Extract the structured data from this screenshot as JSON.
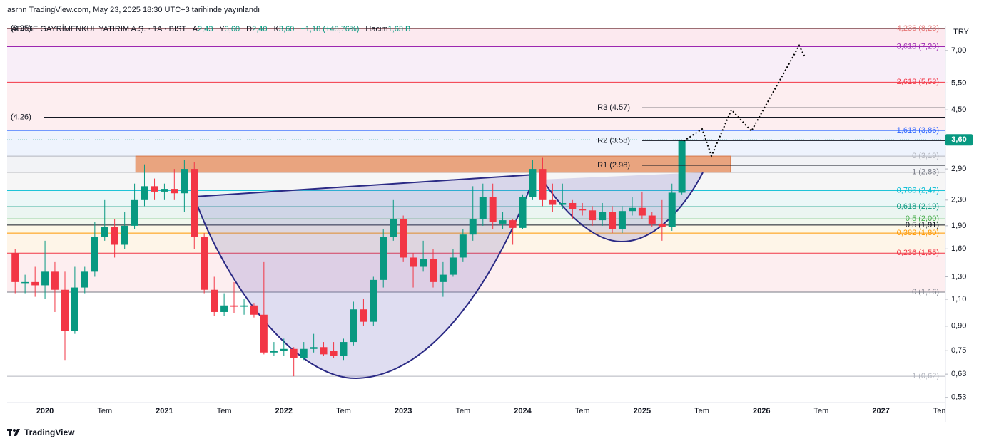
{
  "header": {
    "published": "asrnn TradingView.com, May 23, 2025 18:30 UTC+3 tarihinde yayınlandı"
  },
  "legend": {
    "symbol": "ADESE GAYRİMENKUL YATIRIM A.Ş. · 1A · BIST",
    "fields": [
      {
        "key": "A",
        "value": "2,43"
      },
      {
        "key": "Y",
        "value": "3,60"
      },
      {
        "key": "D",
        "value": "2,40"
      },
      {
        "key": "K",
        "value": "3,60"
      }
    ],
    "change": "+1,18 (+48,76%)",
    "volume_key": "Hacim",
    "volume": "1,63 B"
  },
  "footer": {
    "brand": "TradingView"
  },
  "chart_data": {
    "type": "candlestick",
    "currency": "TRY",
    "log_scale": true,
    "up_color": "#089981",
    "down_color": "#f23645",
    "xlim": [
      2019.683,
      2027.54
    ],
    "xticks": [
      {
        "value": 2020,
        "label": "2020"
      },
      {
        "value": 2020.5,
        "label": "Tem"
      },
      {
        "value": 2021,
        "label": "2021"
      },
      {
        "value": 2021.5,
        "label": "Tem"
      },
      {
        "value": 2022,
        "label": "2022"
      },
      {
        "value": 2022.5,
        "label": "Tem"
      },
      {
        "value": 2023,
        "label": "2023"
      },
      {
        "value": 2023.5,
        "label": "Tem"
      },
      {
        "value": 2024,
        "label": "2024"
      },
      {
        "value": 2024.5,
        "label": "Tem"
      },
      {
        "value": 2025,
        "label": "2025"
      },
      {
        "value": 2025.5,
        "label": "Tem"
      },
      {
        "value": 2026,
        "label": "2026"
      },
      {
        "value": 2026.5,
        "label": "Tem"
      },
      {
        "value": 2027,
        "label": "2027"
      },
      {
        "value": 2027.5,
        "label": "Tem"
      }
    ],
    "ylim": [
      0.51,
      8.42
    ],
    "yticks": [
      {
        "value": 7,
        "label": "7,00"
      },
      {
        "value": 5.5,
        "label": "5,50"
      },
      {
        "value": 4.5,
        "label": "4,50"
      },
      {
        "value": 2.9,
        "label": "2,90"
      },
      {
        "value": 2.3,
        "label": "2,30"
      },
      {
        "value": 1.9,
        "label": "1,90"
      },
      {
        "value": 1.6,
        "label": "1,60"
      },
      {
        "value": 1.3,
        "label": "1,30"
      },
      {
        "value": 1.1,
        "label": "1,10"
      },
      {
        "value": 0.9,
        "label": "0,90"
      },
      {
        "value": 0.75,
        "label": "0,75"
      },
      {
        "value": 0.63,
        "label": "0,63"
      },
      {
        "value": 0.53,
        "label": "0,53"
      }
    ],
    "x": [
      2019.75,
      2019.833,
      2019.917,
      2020,
      2020.083,
      2020.167,
      2020.25,
      2020.333,
      2020.417,
      2020.5,
      2020.583,
      2020.667,
      2020.75,
      2020.833,
      2020.917,
      2021,
      2021.083,
      2021.167,
      2021.25,
      2021.333,
      2021.417,
      2021.5,
      2021.583,
      2021.667,
      2021.75,
      2021.833,
      2021.917,
      2022,
      2022.083,
      2022.167,
      2022.25,
      2022.333,
      2022.417,
      2022.5,
      2022.583,
      2022.667,
      2022.75,
      2022.833,
      2022.917,
      2023,
      2023.083,
      2023.167,
      2023.25,
      2023.333,
      2023.417,
      2023.5,
      2023.583,
      2023.667,
      2023.75,
      2023.833,
      2023.917,
      2024,
      2024.083,
      2024.167,
      2024.25,
      2024.333,
      2024.417,
      2024.5,
      2024.583,
      2024.667,
      2024.75,
      2024.833,
      2024.917,
      2025,
      2025.083,
      2025.167,
      2025.25,
      2025.333
    ],
    "open": [
      1.55,
      1.24,
      1.25,
      1.22,
      1.35,
      1.18,
      0.87,
      1.2,
      1.35,
      1.75,
      1.88,
      1.65,
      1.9,
      2.3,
      2.55,
      2.45,
      2.5,
      2.42,
      2.9,
      1.75,
      1.18,
      1.0,
      1.05,
      1.04,
      1.05,
      0.98,
      0.74,
      0.75,
      0.76,
      0.71,
      0.76,
      0.77,
      0.75,
      0.72,
      0.8,
      1.02,
      0.93,
      1.27,
      1.75,
      2.0,
      1.5,
      1.4,
      1.48,
      1.25,
      1.32,
      1.5,
      1.78,
      2.0,
      2.35,
      1.93,
      1.98,
      1.87,
      2.35,
      2.9,
      2.3,
      2.22,
      2.25,
      2.15,
      2.13,
      1.98,
      2.1,
      1.85,
      2.12,
      2.17,
      2.05,
      1.93,
      1.88,
      2.43
    ],
    "high": [
      1.6,
      1.32,
      1.4,
      1.7,
      1.45,
      1.35,
      1.4,
      1.4,
      1.95,
      2.3,
      2.0,
      2.1,
      2.6,
      3.0,
      2.7,
      2.6,
      2.9,
      3.1,
      3.05,
      1.8,
      1.3,
      1.15,
      1.25,
      1.1,
      1.07,
      1.45,
      0.8,
      0.82,
      0.77,
      0.8,
      0.85,
      0.8,
      0.8,
      0.82,
      1.08,
      1.1,
      1.3,
      1.85,
      2.3,
      2.05,
      1.55,
      1.7,
      1.6,
      1.45,
      1.6,
      1.85,
      2.55,
      2.6,
      2.6,
      2.1,
      2.0,
      2.4,
      3.1,
      3.15,
      2.6,
      2.6,
      2.3,
      2.25,
      2.2,
      2.25,
      2.2,
      2.2,
      2.35,
      2.45,
      2.1,
      2.3,
      2.6,
      3.6
    ],
    "low": [
      1.15,
      1.15,
      1.12,
      1.1,
      1.0,
      0.7,
      0.85,
      1.15,
      1.3,
      1.7,
      1.5,
      1.6,
      1.85,
      2.2,
      2.3,
      2.3,
      2.3,
      2.1,
      1.6,
      1.15,
      0.97,
      0.97,
      0.99,
      0.98,
      0.96,
      0.73,
      0.72,
      0.72,
      0.62,
      0.7,
      0.74,
      0.72,
      0.71,
      0.7,
      0.78,
      0.9,
      0.9,
      1.2,
      1.7,
      1.45,
      1.2,
      1.35,
      1.2,
      1.12,
      1.3,
      1.45,
      1.7,
      1.9,
      1.85,
      1.85,
      1.65,
      1.85,
      2.3,
      2.2,
      2.1,
      2.15,
      2.0,
      2.05,
      1.9,
      1.9,
      1.8,
      1.8,
      2.05,
      2.0,
      1.88,
      1.7,
      1.83,
      2.4
    ],
    "close": [
      1.25,
      1.25,
      1.22,
      1.35,
      1.18,
      0.87,
      1.2,
      1.35,
      1.75,
      1.88,
      1.65,
      1.9,
      2.3,
      2.55,
      2.45,
      2.5,
      2.42,
      2.9,
      1.75,
      1.18,
      1.0,
      1.05,
      1.04,
      1.05,
      0.98,
      0.74,
      0.75,
      0.76,
      0.71,
      0.76,
      0.77,
      0.73,
      0.72,
      0.8,
      1.02,
      0.93,
      1.27,
      1.75,
      2.0,
      1.5,
      1.4,
      1.48,
      1.25,
      1.32,
      1.5,
      1.78,
      2.0,
      2.35,
      1.95,
      1.98,
      1.87,
      2.35,
      2.9,
      2.3,
      2.22,
      2.25,
      2.15,
      2.13,
      1.98,
      2.1,
      1.85,
      2.12,
      2.17,
      2.05,
      1.93,
      1.88,
      2.43,
      3.6
    ],
    "last_price": {
      "value": 3.6,
      "label": "3,60",
      "color": "#089981"
    },
    "fib_levels": [
      {
        "label": "4,236 (8,23)",
        "value": 8.23,
        "color": "#e57373",
        "band": "#fce9ef"
      },
      {
        "label": "3,618 (7,20)",
        "value": 7.2,
        "color": "#9c27b0",
        "band": "#f8eef8"
      },
      {
        "label": "2,618 (5,53)",
        "value": 5.53,
        "color": "#f23645",
        "band": "#fdeef0"
      },
      {
        "label": "1,618 (3,86)",
        "value": 3.86,
        "color": "#2962ff",
        "band": "#eef3fd"
      },
      {
        "label": "0 (3,19)",
        "value": 3.19,
        "color": "#b2b5be",
        "band": "#f2f3f6"
      },
      {
        "label": "1 (2,83)",
        "value": 2.83,
        "color": "#787b86",
        "band": "#f6f6f6"
      },
      {
        "label": "0,786 (2,47)",
        "value": 2.47,
        "color": "#00bcd4",
        "band": "#ebf7f7"
      },
      {
        "label": "0,618 (2,19)",
        "value": 2.19,
        "color": "#089981",
        "band": "#ebf5f1"
      },
      {
        "label": "0,5 (2,00)",
        "value": 2.0,
        "color": "#4caf50",
        "band": "#f1f8ee"
      },
      {
        "label": "0,5 (1,91)",
        "value": 1.91,
        "color": "#131722",
        "band": "#fdf8e8"
      },
      {
        "label": "0,382 (1,80)",
        "value": 1.8,
        "color": "#ff9800",
        "band": "#fef5e8"
      },
      {
        "label": "0,236 (1,55)",
        "value": 1.55,
        "color": "#f23645",
        "band": "#fdeef0"
      },
      {
        "label": "0 (1,16)",
        "value": 1.16,
        "color": "#787b86",
        "band": "#ffffff"
      },
      {
        "label": "1 (0,62)",
        "value": 0.62,
        "color": "#b2b5be"
      }
    ],
    "pivots": [
      {
        "label": "R3 (4.57)",
        "value": 4.57
      },
      {
        "label": "R2 (3.58)",
        "value": 3.58
      },
      {
        "label": "R1 (2.98)",
        "value": 2.98
      }
    ],
    "reference_lines": [
      {
        "label": "(8.25)",
        "value": 8.25
      },
      {
        "label": "(4.26)",
        "value": 4.26
      }
    ],
    "zone": {
      "x": [
        2020.76,
        2025.74
      ],
      "top": 3.19,
      "bottom": 2.83,
      "color": "#e8956a"
    }
  }
}
